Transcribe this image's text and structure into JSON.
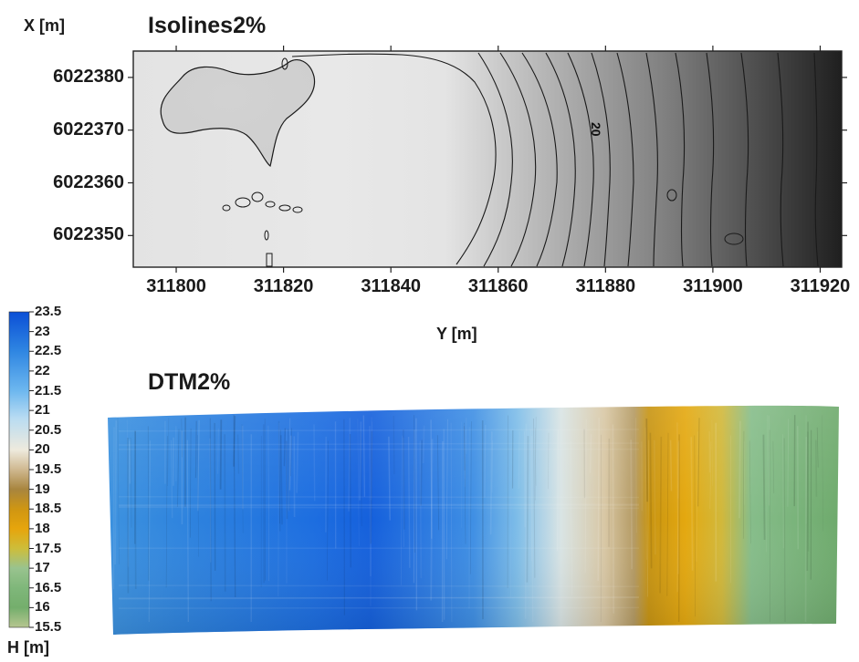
{
  "chart_data": [
    {
      "type": "heatmap",
      "title": "Isolines2%",
      "xlabel": "Y [m]",
      "ylabel": "X [m]",
      "xlim": [
        311792,
        311924
      ],
      "ylim": [
        6022344,
        6022385
      ],
      "x_ticks": [
        311800,
        311820,
        311840,
        311860,
        311880,
        311900,
        311920
      ],
      "x_tick_labels": [
        "311800",
        "311820",
        "311840",
        "311860",
        "311880",
        "311900",
        "311920"
      ],
      "y_ticks": [
        6022380,
        6022370,
        6022360,
        6022350
      ],
      "y_tick_labels": [
        "6022380",
        "6022370",
        "6022360",
        "6022350"
      ],
      "annotations": [
        {
          "text": "20",
          "x": 311878,
          "y": 6022373
        }
      ],
      "grid": false,
      "colors": {
        "high": "#e9e9e9",
        "low": "#1c1c1c",
        "line": "#1a1a1a"
      }
    },
    {
      "type": "heatmap",
      "title": "DTM2%",
      "colorbar": {
        "label": "H [m]",
        "range": [
          15.5,
          23.5
        ],
        "ticks": [
          "23.5",
          "23",
          "22.5",
          "22",
          "21.5",
          "21",
          "20.5",
          "20",
          "19.5",
          "19",
          "18.5",
          "18",
          "17.5",
          "17",
          "16.5",
          "16",
          "15.5"
        ],
        "colors": [
          {
            "value": 23.5,
            "color": "#0b4fd6"
          },
          {
            "value": 22.5,
            "color": "#2f86e2"
          },
          {
            "value": 21.5,
            "color": "#6db7ef"
          },
          {
            "value": 20.8,
            "color": "#b9dcf2"
          },
          {
            "value": 20.0,
            "color": "#eeeadd"
          },
          {
            "value": 19.5,
            "color": "#cfb890"
          },
          {
            "value": 19.0,
            "color": "#a8853e"
          },
          {
            "value": 18.5,
            "color": "#cf9612"
          },
          {
            "value": 18.0,
            "color": "#e6a50c"
          },
          {
            "value": 17.5,
            "color": "#cdbd3a"
          },
          {
            "value": 17.0,
            "color": "#99c38e"
          },
          {
            "value": 16.5,
            "color": "#7fb77a"
          },
          {
            "value": 16.0,
            "color": "#74ae6c"
          },
          {
            "value": 15.5,
            "color": "#b6c690"
          }
        ]
      },
      "grid": false
    }
  ]
}
